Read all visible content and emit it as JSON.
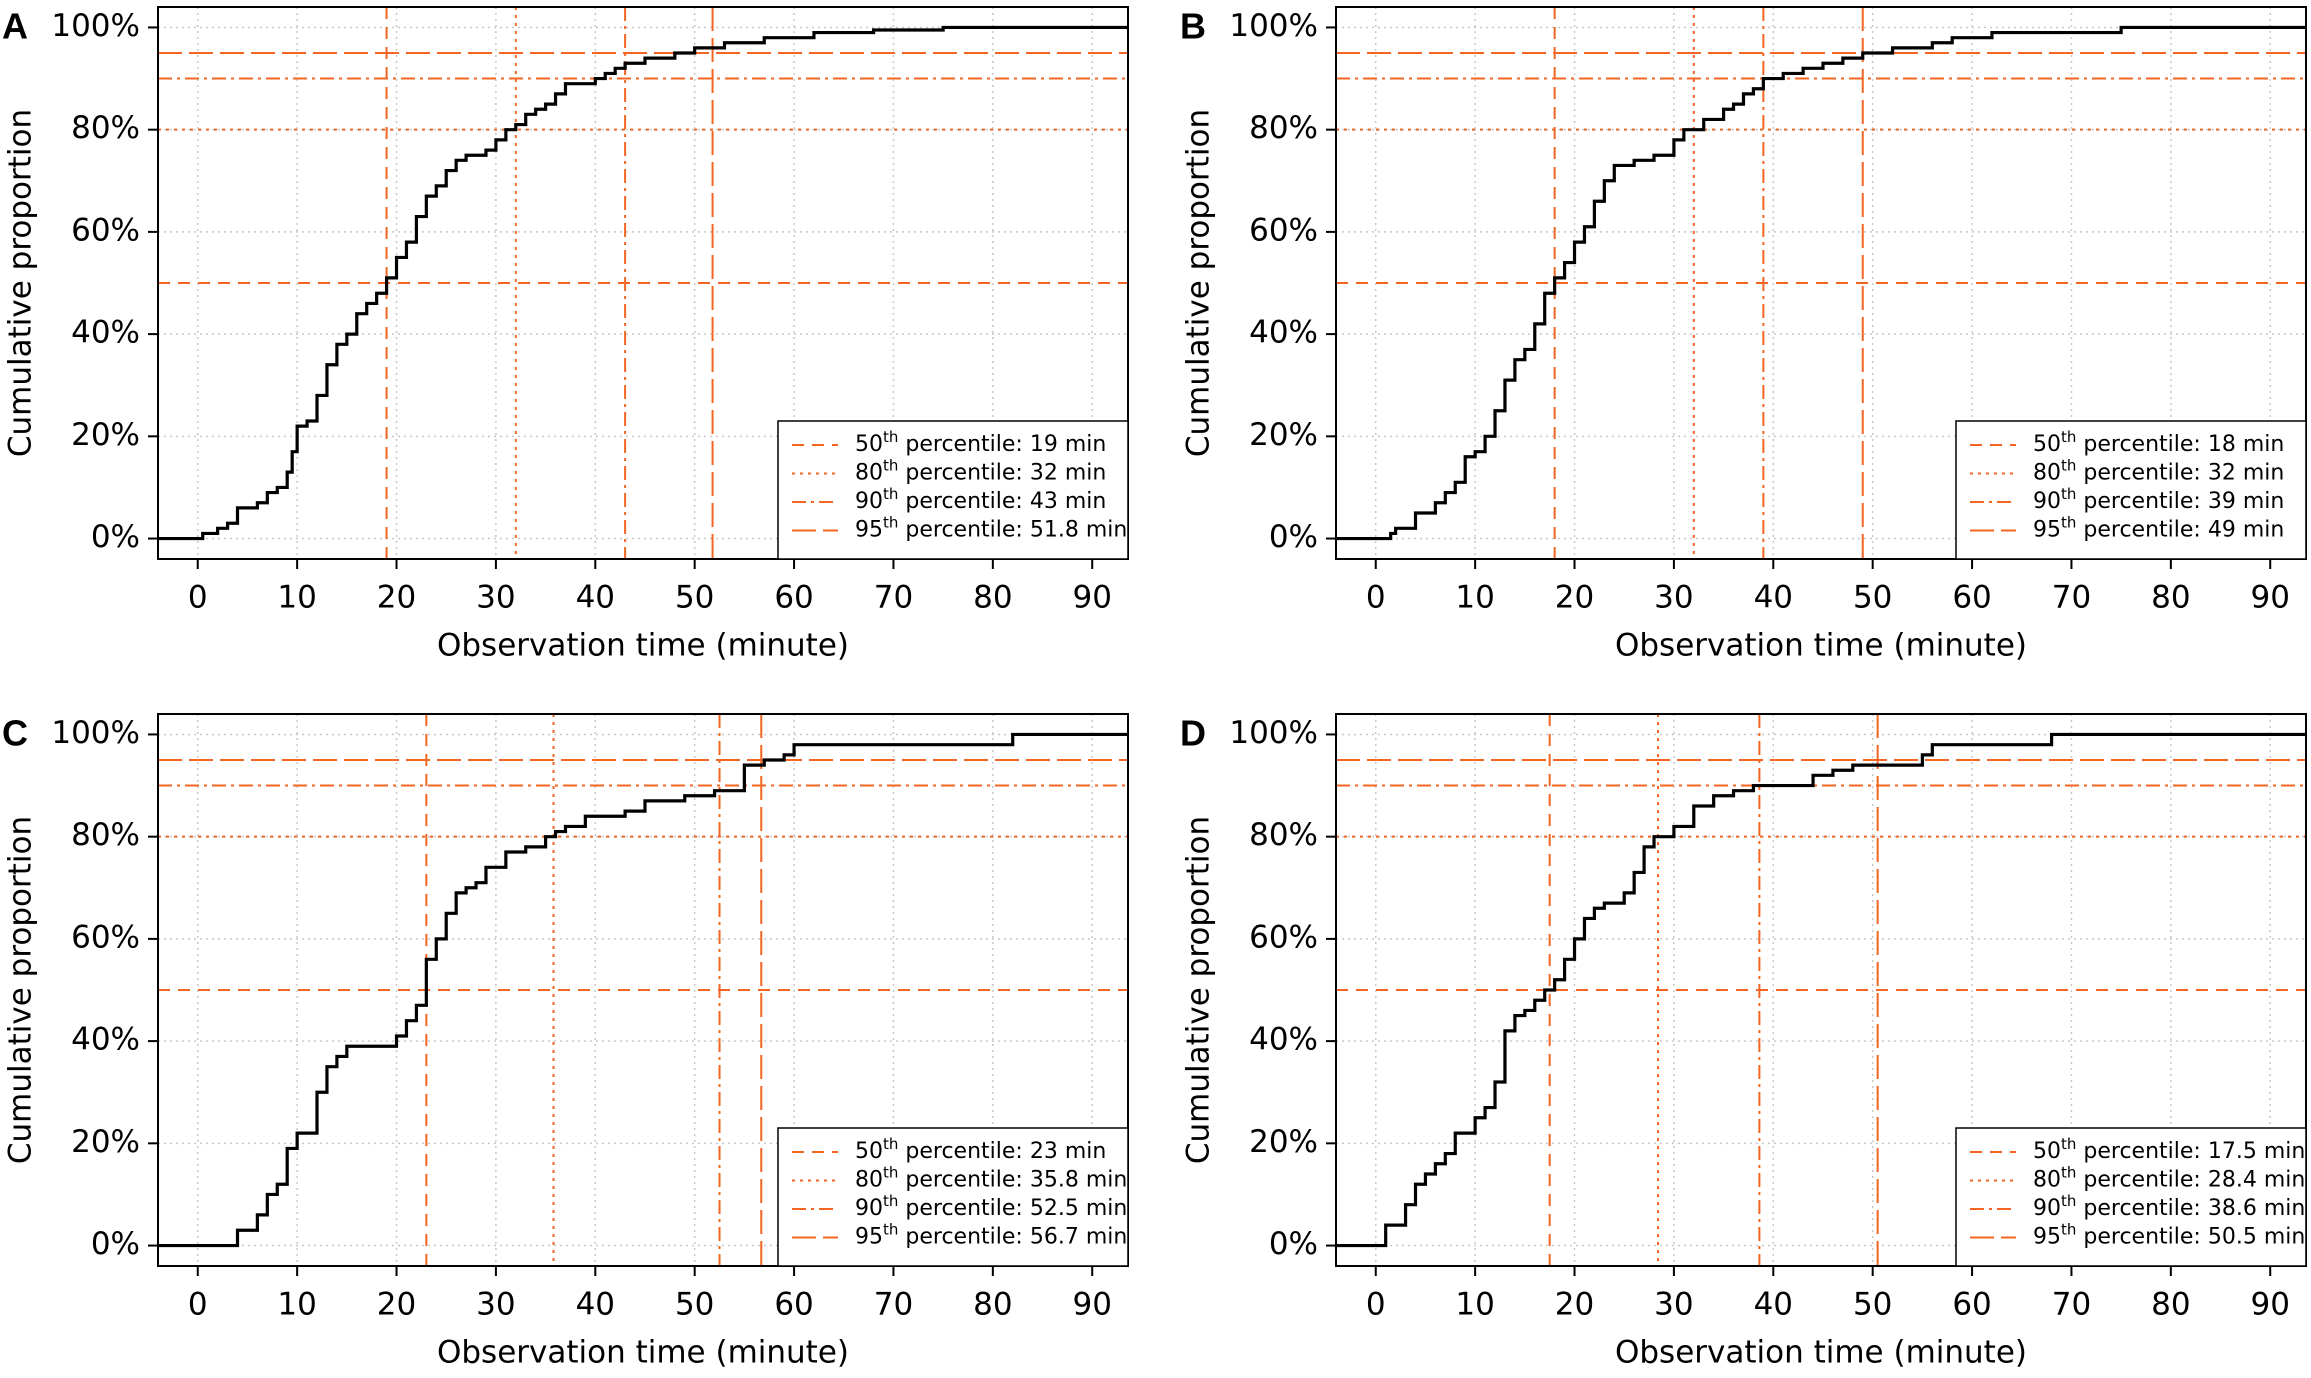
{
  "chart_data": [
    {
      "type": "line",
      "panel": "A",
      "xlabel": "Observation time (minute)",
      "ylabel": "Cumulative proportion",
      "xlim": [
        -4,
        93.6
      ],
      "ylim": [
        -4,
        104
      ],
      "xticks": [
        0,
        10,
        20,
        30,
        40,
        50,
        60,
        70,
        80,
        90
      ],
      "yticks": [
        {
          "value": 0,
          "label": "0%"
        },
        {
          "value": 20,
          "label": "20%"
        },
        {
          "value": 40,
          "label": "40%"
        },
        {
          "value": 60,
          "label": "60%"
        },
        {
          "value": 80,
          "label": "80%"
        },
        {
          "value": 100,
          "label": "100%"
        }
      ],
      "grid": true,
      "step": "post",
      "series": [
        {
          "color": "#000000",
          "x": [
            0,
            0.5,
            2,
            3,
            4,
            6,
            7,
            8,
            9,
            9.5,
            10,
            11,
            12,
            13,
            14,
            15,
            16,
            17,
            18,
            19,
            20,
            21,
            22,
            23,
            24,
            25,
            26,
            27,
            29,
            30,
            31,
            32,
            33,
            34,
            35,
            36,
            37,
            40,
            41,
            42,
            43,
            45,
            48,
            50,
            53,
            57,
            62,
            68,
            75
          ],
          "values": [
            0,
            1,
            2,
            3,
            6,
            7,
            9,
            10,
            13,
            17,
            22,
            23,
            28,
            34,
            38,
            40,
            44,
            46,
            48,
            51,
            55,
            58,
            63,
            67,
            69,
            72,
            74,
            75,
            76,
            78,
            80,
            81,
            83,
            84,
            85,
            87,
            89,
            90,
            91,
            92,
            93,
            94,
            95,
            96,
            97,
            98,
            99,
            99.5,
            100
          ]
        }
      ],
      "reference_color": "#f26522",
      "reference_lines": [
        {
          "percentile": 50,
          "ordinal": "th",
          "text": "percentile:",
          "time": 19,
          "unit": "min",
          "dash": "dashed"
        },
        {
          "percentile": 80,
          "ordinal": "th",
          "text": "percentile:",
          "time": 32,
          "unit": "min",
          "dash": "dotted"
        },
        {
          "percentile": 90,
          "ordinal": "th",
          "text": "percentile:",
          "time": 43,
          "unit": "min",
          "dash": "dashdot"
        },
        {
          "percentile": 95,
          "ordinal": "th",
          "text": "percentile:",
          "time": 51.8,
          "unit": "min",
          "dash": "longdash"
        }
      ]
    },
    {
      "type": "line",
      "panel": "B",
      "xlabel": "Observation time (minute)",
      "ylabel": "Cumulative proportion",
      "xlim": [
        -4,
        93.6
      ],
      "ylim": [
        -4,
        104
      ],
      "xticks": [
        0,
        10,
        20,
        30,
        40,
        50,
        60,
        70,
        80,
        90
      ],
      "yticks": [
        {
          "value": 0,
          "label": "0%"
        },
        {
          "value": 20,
          "label": "20%"
        },
        {
          "value": 40,
          "label": "40%"
        },
        {
          "value": 60,
          "label": "60%"
        },
        {
          "value": 80,
          "label": "80%"
        },
        {
          "value": 100,
          "label": "100%"
        }
      ],
      "grid": true,
      "step": "post",
      "series": [
        {
          "color": "#000000",
          "x": [
            0,
            1.5,
            2,
            4,
            6,
            7,
            8,
            9,
            10,
            11,
            12,
            13,
            14,
            15,
            16,
            17,
            18,
            19,
            20,
            21,
            22,
            23,
            24,
            26,
            28,
            30,
            31,
            33,
            35,
            36,
            37,
            38,
            39,
            41,
            43,
            45,
            47,
            49,
            52,
            56,
            58,
            62,
            75
          ],
          "values": [
            0,
            1,
            2,
            5,
            7,
            9,
            11,
            16,
            17,
            20,
            25,
            31,
            35,
            37,
            42,
            48,
            51,
            54,
            58,
            61,
            66,
            70,
            73,
            74,
            75,
            78,
            80,
            82,
            84,
            85,
            87,
            88,
            90,
            91,
            92,
            93,
            94,
            95,
            96,
            97,
            98,
            99,
            100
          ]
        }
      ],
      "reference_color": "#f26522",
      "reference_lines": [
        {
          "percentile": 50,
          "ordinal": "th",
          "text": "percentile:",
          "time": 18,
          "unit": "min",
          "dash": "dashed"
        },
        {
          "percentile": 80,
          "ordinal": "th",
          "text": "percentile:",
          "time": 32,
          "unit": "min",
          "dash": "dotted"
        },
        {
          "percentile": 90,
          "ordinal": "th",
          "text": "percentile:",
          "time": 39,
          "unit": "min",
          "dash": "dashdot"
        },
        {
          "percentile": 95,
          "ordinal": "th",
          "text": "percentile:",
          "time": 49,
          "unit": "min",
          "dash": "longdash"
        }
      ]
    },
    {
      "type": "line",
      "panel": "C",
      "xlabel": "Observation time (minute)",
      "ylabel": "Cumulative proportion",
      "xlim": [
        -4,
        93.6
      ],
      "ylim": [
        -4,
        104
      ],
      "xticks": [
        0,
        10,
        20,
        30,
        40,
        50,
        60,
        70,
        80,
        90
      ],
      "yticks": [
        {
          "value": 0,
          "label": "0%"
        },
        {
          "value": 20,
          "label": "20%"
        },
        {
          "value": 40,
          "label": "40%"
        },
        {
          "value": 60,
          "label": "60%"
        },
        {
          "value": 80,
          "label": "80%"
        },
        {
          "value": 100,
          "label": "100%"
        }
      ],
      "grid": true,
      "step": "post",
      "series": [
        {
          "color": "#000000",
          "x": [
            0,
            4,
            6,
            7,
            8,
            9,
            10,
            12,
            13,
            14,
            15,
            20,
            21,
            22,
            23,
            24,
            25,
            26,
            27,
            28,
            29,
            31,
            33,
            35,
            36,
            37,
            39,
            43,
            45,
            49,
            52,
            55,
            57,
            59,
            60,
            82
          ],
          "values": [
            0,
            3,
            6,
            10,
            12,
            19,
            22,
            30,
            35,
            37,
            39,
            41,
            44,
            47,
            56,
            60,
            65,
            69,
            70,
            71,
            74,
            77,
            78,
            80,
            81,
            82,
            84,
            85,
            87,
            88,
            89,
            94,
            95,
            96,
            98,
            100
          ]
        }
      ],
      "reference_color": "#f26522",
      "reference_lines": [
        {
          "percentile": 50,
          "ordinal": "th",
          "text": "percentile:",
          "time": 23,
          "unit": "min",
          "dash": "dashed"
        },
        {
          "percentile": 80,
          "ordinal": "th",
          "text": "percentile:",
          "time": 35.8,
          "unit": "min",
          "dash": "dotted"
        },
        {
          "percentile": 90,
          "ordinal": "th",
          "text": "percentile:",
          "time": 52.5,
          "unit": "min",
          "dash": "dashdot"
        },
        {
          "percentile": 95,
          "ordinal": "th",
          "text": "percentile:",
          "time": 56.7,
          "unit": "min",
          "dash": "longdash"
        }
      ]
    },
    {
      "type": "line",
      "panel": "D",
      "xlabel": "Observation time (minute)",
      "ylabel": "Cumulative proportion",
      "xlim": [
        -4,
        93.6
      ],
      "ylim": [
        -4,
        104
      ],
      "xticks": [
        0,
        10,
        20,
        30,
        40,
        50,
        60,
        70,
        80,
        90
      ],
      "yticks": [
        {
          "value": 0,
          "label": "0%"
        },
        {
          "value": 20,
          "label": "20%"
        },
        {
          "value": 40,
          "label": "40%"
        },
        {
          "value": 60,
          "label": "60%"
        },
        {
          "value": 80,
          "label": "80%"
        },
        {
          "value": 100,
          "label": "100%"
        }
      ],
      "grid": true,
      "step": "post",
      "series": [
        {
          "color": "#000000",
          "x": [
            0,
            1,
            3,
            4,
            5,
            6,
            7,
            8,
            10,
            11,
            12,
            13,
            14,
            15,
            16,
            17,
            18,
            19,
            20,
            21,
            22,
            23,
            25,
            26,
            27,
            28,
            30,
            32,
            34,
            36,
            38,
            44,
            46,
            48,
            55,
            56,
            68
          ],
          "values": [
            0,
            4,
            8,
            12,
            14,
            16,
            18,
            22,
            25,
            27,
            32,
            42,
            45,
            46,
            48,
            50,
            52,
            56,
            60,
            64,
            66,
            67,
            69,
            73,
            78,
            80,
            82,
            86,
            88,
            89,
            90,
            92,
            93,
            94,
            96,
            98,
            100
          ]
        }
      ],
      "reference_color": "#f26522",
      "reference_lines": [
        {
          "percentile": 50,
          "ordinal": "th",
          "text": "percentile:",
          "time": 17.5,
          "unit": "min",
          "dash": "dashed"
        },
        {
          "percentile": 80,
          "ordinal": "th",
          "text": "percentile:",
          "time": 28.4,
          "unit": "min",
          "dash": "dotted"
        },
        {
          "percentile": 90,
          "ordinal": "th",
          "text": "percentile:",
          "time": 38.6,
          "unit": "min",
          "dash": "dashdot"
        },
        {
          "percentile": 95,
          "ordinal": "th",
          "text": "percentile:",
          "time": 50.5,
          "unit": "min",
          "dash": "longdash"
        }
      ]
    }
  ]
}
